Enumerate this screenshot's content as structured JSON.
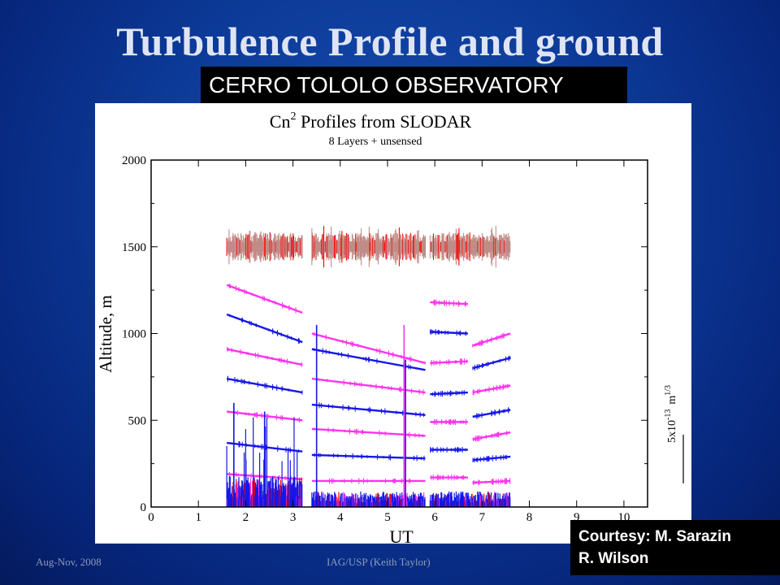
{
  "slide": {
    "title": "Turbulence Profile and ground",
    "observatory_label": "CERRO TOLOLO OBSERVATORY",
    "courtesy_line1": "Courtesy: M. Sarazin",
    "courtesy_line2": "R. Wilson",
    "footer_left": "Aug-Nov, 2008",
    "footer_center": "IAG/USP (Keith Taylor)"
  },
  "colors": {
    "background": "#0c3a98",
    "top_layer": "#c08c88",
    "magenta": "#ff33ee",
    "blue": "#1616e6",
    "red": "#ff0000"
  },
  "chart_data": {
    "type": "scatter",
    "title_main": "Cn",
    "title_sup": "2",
    "title_rest": " Profiles from SLODAR",
    "subtitle": "8 Layers + unsensed",
    "xlabel": "UT",
    "ylabel": "Altitude, m",
    "xlim": [
      0,
      10.5
    ],
    "ylim": [
      0,
      2000
    ],
    "xticks": [
      0,
      1,
      2,
      3,
      4,
      5,
      6,
      7,
      8,
      9,
      10
    ],
    "yticks": [
      0,
      500,
      1000,
      1500,
      2000
    ],
    "scale_label_main": "5x10",
    "scale_label_exp": "-13",
    "scale_label_unit": "m",
    "scale_label_unit_exp": "1/3",
    "segments": [
      [
        1.6,
        3.2
      ],
      [
        3.4,
        5.8
      ],
      [
        5.9,
        6.8
      ],
      [
        6.8,
        7.6
      ]
    ],
    "layers": [
      {
        "color": "magenta",
        "points": [
          [
            1.6,
            1280
          ],
          [
            3.2,
            1120
          ],
          [
            3.4,
            1000
          ],
          [
            5.8,
            830
          ],
          [
            5.9,
            1180
          ],
          [
            6.7,
            1170
          ],
          [
            6.8,
            930
          ],
          [
            7.6,
            1000
          ]
        ]
      },
      {
        "color": "blue",
        "points": [
          [
            1.6,
            1110
          ],
          [
            3.2,
            950
          ],
          [
            3.4,
            910
          ],
          [
            5.8,
            790
          ],
          [
            5.9,
            1010
          ],
          [
            6.7,
            1000
          ],
          [
            6.8,
            800
          ],
          [
            7.6,
            860
          ]
        ]
      },
      {
        "color": "magenta",
        "points": [
          [
            1.6,
            910
          ],
          [
            3.2,
            820
          ],
          [
            3.4,
            740
          ],
          [
            5.8,
            660
          ],
          [
            5.9,
            830
          ],
          [
            6.7,
            840
          ],
          [
            6.8,
            660
          ],
          [
            7.6,
            700
          ]
        ]
      },
      {
        "color": "blue",
        "points": [
          [
            1.6,
            740
          ],
          [
            3.2,
            660
          ],
          [
            3.4,
            590
          ],
          [
            5.8,
            530
          ],
          [
            5.9,
            650
          ],
          [
            6.7,
            660
          ],
          [
            6.8,
            520
          ],
          [
            7.6,
            560
          ]
        ]
      },
      {
        "color": "magenta",
        "points": [
          [
            1.6,
            550
          ],
          [
            3.2,
            500
          ],
          [
            3.4,
            450
          ],
          [
            5.8,
            410
          ],
          [
            5.9,
            490
          ],
          [
            6.7,
            490
          ],
          [
            6.8,
            390
          ],
          [
            7.6,
            430
          ]
        ]
      },
      {
        "color": "blue",
        "points": [
          [
            1.6,
            370
          ],
          [
            3.2,
            320
          ],
          [
            3.4,
            300
          ],
          [
            5.8,
            280
          ],
          [
            5.9,
            330
          ],
          [
            6.7,
            330
          ],
          [
            6.8,
            270
          ],
          [
            7.6,
            290
          ]
        ]
      },
      {
        "color": "magenta",
        "points": [
          [
            1.6,
            190
          ],
          [
            3.2,
            160
          ],
          [
            3.4,
            150
          ],
          [
            5.8,
            150
          ],
          [
            5.9,
            170
          ],
          [
            6.7,
            170
          ],
          [
            6.8,
            140
          ],
          [
            7.6,
            150
          ]
        ]
      }
    ],
    "top_layer_altitude": 1500,
    "ground_layer_altitude": 0
  }
}
